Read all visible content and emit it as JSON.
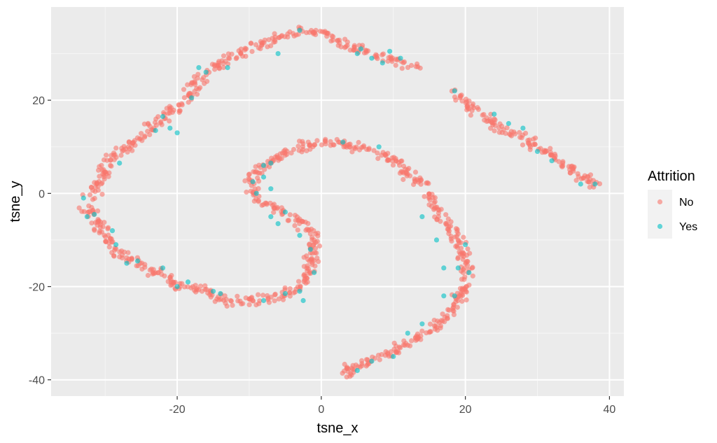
{
  "chart_data": {
    "type": "scatter",
    "xlabel": "tsne_x",
    "ylabel": "tsne_y",
    "xlim": [
      -37.5,
      42
    ],
    "ylim": [
      -43.5,
      40
    ],
    "x_ticks": [
      -20,
      0,
      20,
      40
    ],
    "y_ticks": [
      -40,
      -20,
      0,
      20
    ],
    "grid": true,
    "legend": {
      "title": "Attrition",
      "placement": "right",
      "entries": [
        {
          "label": "No",
          "color": "#F8766D"
        },
        {
          "label": "Yes",
          "color": "#00BFC4"
        }
      ]
    },
    "point_alpha": 0.6,
    "series": [
      {
        "name": "No",
        "color": "#F8766D",
        "paths": [
          [
            [
              -33.5,
              -2.5
            ],
            [
              -32,
              -4
            ],
            [
              -31,
              -6
            ],
            [
              -30,
              -9
            ],
            [
              -29,
              -11
            ],
            [
              -28,
              -12.5
            ],
            [
              -26.5,
              -14
            ],
            [
              -25,
              -15.5
            ],
            [
              -23,
              -17
            ],
            [
              -21.5,
              -18.5
            ],
            [
              -20,
              -20
            ],
            [
              -18,
              -20
            ],
            [
              -16,
              -21
            ],
            [
              -14,
              -22.5
            ],
            [
              -12,
              -23.5
            ],
            [
              -10,
              -23
            ],
            [
              -8,
              -23
            ],
            [
              -6,
              -22
            ],
            [
              -4.5,
              -21.5
            ],
            [
              -3,
              -20
            ],
            [
              -2,
              -18
            ],
            [
              -1.5,
              -15
            ],
            [
              -1.2,
              -12
            ],
            [
              -1,
              -9
            ],
            [
              -2.5,
              -7
            ],
            [
              -4,
              -5
            ],
            [
              -5.5,
              -4
            ],
            [
              -7,
              -2.5
            ],
            [
              -8.5,
              -1
            ],
            [
              -9.5,
              0.5
            ],
            [
              -9.5,
              3
            ],
            [
              -8.5,
              5.5
            ],
            [
              -6.5,
              7.5
            ],
            [
              -4.5,
              9
            ],
            [
              -2.5,
              10.5
            ],
            [
              0,
              11
            ],
            [
              2.5,
              10.5
            ],
            [
              5,
              10
            ],
            [
              7.5,
              9
            ],
            [
              9.5,
              7.5
            ],
            [
              11.5,
              5.5
            ],
            [
              13.5,
              3
            ],
            [
              15,
              0
            ],
            [
              16,
              -3
            ],
            [
              17.5,
              -6
            ],
            [
              18.5,
              -9
            ],
            [
              19.5,
              -12
            ],
            [
              20,
              -15
            ],
            [
              20,
              -18
            ],
            [
              19.5,
              -21
            ],
            [
              18.5,
              -24
            ],
            [
              17,
              -27
            ],
            [
              15,
              -29.5
            ],
            [
              13,
              -31
            ],
            [
              11,
              -33
            ],
            [
              9,
              -34.5
            ],
            [
              7,
              -36
            ],
            [
              5,
              -37
            ],
            [
              3,
              -38
            ],
            [
              4.5,
              -39
            ]
          ],
          [
            [
              -32,
              -1
            ],
            [
              -31,
              2
            ],
            [
              -30,
              5
            ],
            [
              -29.5,
              7.5
            ],
            [
              -28,
              9
            ],
            [
              -26.5,
              10.5
            ],
            [
              -25,
              12.5
            ],
            [
              -23.5,
              14.5
            ],
            [
              -22,
              16.5
            ],
            [
              -20.5,
              18
            ],
            [
              -19,
              20
            ],
            [
              -18,
              22
            ],
            [
              -17,
              24
            ],
            [
              -16,
              26
            ],
            [
              -14.5,
              27.5
            ],
            [
              -12.5,
              29
            ],
            [
              -10.5,
              30.5
            ],
            [
              -8.5,
              32
            ],
            [
              -6.5,
              33
            ],
            [
              -4.5,
              34
            ],
            [
              -2.5,
              35
            ],
            [
              -0.5,
              34.5
            ],
            [
              1.5,
              33.5
            ],
            [
              3.5,
              32
            ],
            [
              5.5,
              31
            ],
            [
              7.5,
              30
            ],
            [
              9.5,
              29
            ],
            [
              11.5,
              28
            ],
            [
              13,
              27
            ]
          ],
          [
            [
              18.5,
              21.5
            ],
            [
              19.5,
              20
            ],
            [
              20.5,
              18.5
            ],
            [
              22,
              17
            ],
            [
              23.5,
              15.5
            ],
            [
              25,
              14
            ],
            [
              26.5,
              13
            ],
            [
              28,
              12
            ],
            [
              29.5,
              10.5
            ],
            [
              31,
              9
            ],
            [
              32.5,
              7.5
            ],
            [
              34,
              6
            ],
            [
              35.5,
              4.5
            ],
            [
              37,
              3
            ],
            [
              38.5,
              1.5
            ]
          ]
        ],
        "count": 1100
      },
      {
        "name": "Yes",
        "color": "#00BFC4",
        "points": [
          [
            -33,
            -1
          ],
          [
            -32.5,
            -5
          ],
          [
            -31.5,
            -4.5
          ],
          [
            -29,
            -8
          ],
          [
            -28.5,
            -11
          ],
          [
            -27,
            -15
          ],
          [
            -25.5,
            -14.5
          ],
          [
            -22,
            -16
          ],
          [
            -20,
            -20
          ],
          [
            -18.5,
            -19
          ],
          [
            -14,
            -21.5
          ],
          [
            -8,
            -23
          ],
          [
            -5,
            -21.5
          ],
          [
            -3,
            -21
          ],
          [
            -2.5,
            -23
          ],
          [
            -1,
            -17
          ],
          [
            -1.5,
            -12
          ],
          [
            -3,
            -9
          ],
          [
            -6,
            -6.5
          ],
          [
            -7,
            -5
          ],
          [
            -5,
            -4
          ],
          [
            -7,
            1
          ],
          [
            -8,
            3.5
          ],
          [
            -8,
            6
          ],
          [
            -7,
            6.5
          ],
          [
            -9,
            0
          ],
          [
            -9.5,
            2.5
          ],
          [
            -28,
            6.5
          ],
          [
            -23,
            13.5
          ],
          [
            -22,
            16.5
          ],
          [
            -21,
            14
          ],
          [
            -20,
            13
          ],
          [
            -18,
            20.5
          ],
          [
            -17,
            27
          ],
          [
            -16,
            26
          ],
          [
            -13,
            27
          ],
          [
            -6,
            30
          ],
          [
            -3,
            35
          ],
          [
            5.5,
            31
          ],
          [
            7,
            29
          ],
          [
            8.5,
            28
          ],
          [
            9.5,
            30.5
          ],
          [
            11,
            29
          ],
          [
            5,
            30
          ],
          [
            8,
            10
          ],
          [
            14,
            -5
          ],
          [
            16,
            -10
          ],
          [
            17,
            -16
          ],
          [
            19,
            -16
          ],
          [
            20,
            -11
          ],
          [
            20.5,
            -17
          ],
          [
            18.5,
            -22
          ],
          [
            17,
            -22
          ],
          [
            14,
            -28
          ],
          [
            12,
            -30
          ],
          [
            10,
            -35
          ],
          [
            7,
            -36
          ],
          [
            5,
            -38
          ],
          [
            18.5,
            22
          ],
          [
            24,
            17
          ],
          [
            26,
            15
          ],
          [
            28,
            14
          ],
          [
            30,
            9
          ],
          [
            32,
            7
          ],
          [
            36,
            2
          ],
          [
            38,
            2
          ],
          [
            3,
            11
          ],
          [
            -15,
            -21
          ]
        ],
        "count": 70
      }
    ]
  }
}
